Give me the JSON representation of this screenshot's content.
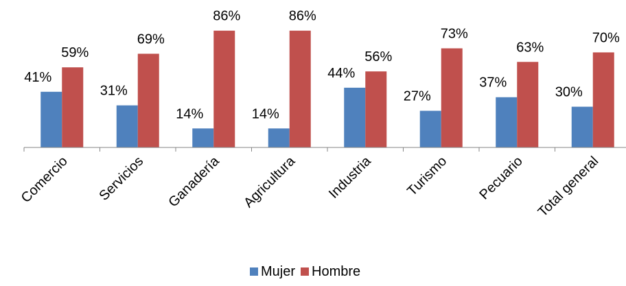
{
  "chart_data": {
    "type": "bar",
    "categories": [
      "Comercio",
      "Servicios",
      "Ganadería",
      "Agricultura",
      "Industria",
      "Turismo",
      "Pecuario",
      "Total general"
    ],
    "series": [
      {
        "name": "Mujer",
        "color": "#4F81BD",
        "values": [
          41,
          31,
          14,
          14,
          44,
          27,
          37,
          30
        ],
        "labels": [
          "41%",
          "31%",
          "14%",
          "14%",
          "44%",
          "27%",
          "37%",
          "30%"
        ]
      },
      {
        "name": "Hombre",
        "color": "#C0504D",
        "values": [
          59,
          69,
          86,
          86,
          56,
          73,
          63,
          70
        ],
        "labels": [
          "59%",
          "69%",
          "86%",
          "86%",
          "56%",
          "73%",
          "63%",
          "70%"
        ]
      }
    ],
    "ylim": [
      0,
      100
    ],
    "unit": "%",
    "grid": false,
    "legend_position": "bottom"
  }
}
